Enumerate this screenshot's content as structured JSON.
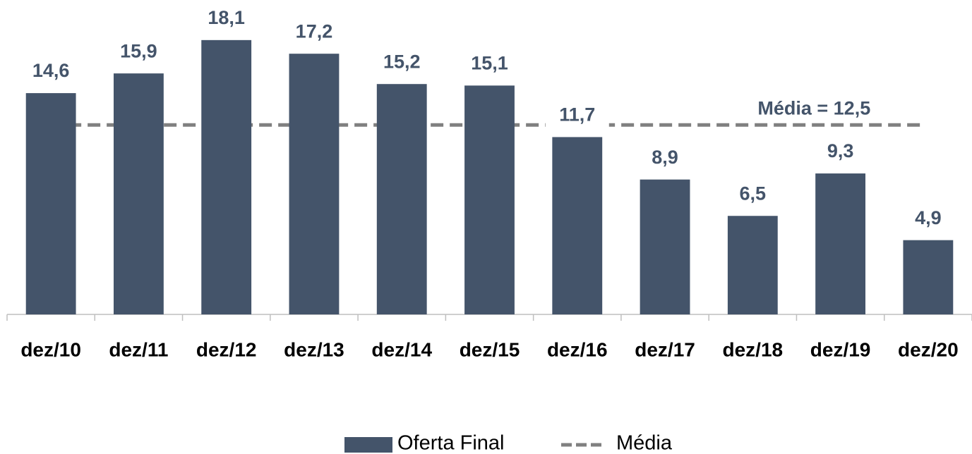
{
  "chart_data": {
    "type": "bar",
    "categories": [
      "dez/10",
      "dez/11",
      "dez/12",
      "dez/13",
      "dez/14",
      "dez/15",
      "dez/16",
      "dez/17",
      "dez/18",
      "dez/19",
      "dez/20"
    ],
    "series": [
      {
        "name": "Oferta Final",
        "color": "#44546a",
        "values": [
          14.6,
          15.9,
          18.1,
          17.2,
          15.2,
          15.1,
          11.7,
          8.9,
          6.5,
          9.3,
          4.9
        ],
        "value_labels": [
          "14,6",
          "15,9",
          "18,1",
          "17,2",
          "15,2",
          "15,1",
          "11,7",
          "8,9",
          "6,5",
          "9,3",
          "4,9"
        ]
      }
    ],
    "mean": {
      "name": "Média",
      "value": 12.5,
      "label": "Média = 12,5",
      "color": "#808080"
    },
    "ylim": [
      0,
      20
    ]
  }
}
